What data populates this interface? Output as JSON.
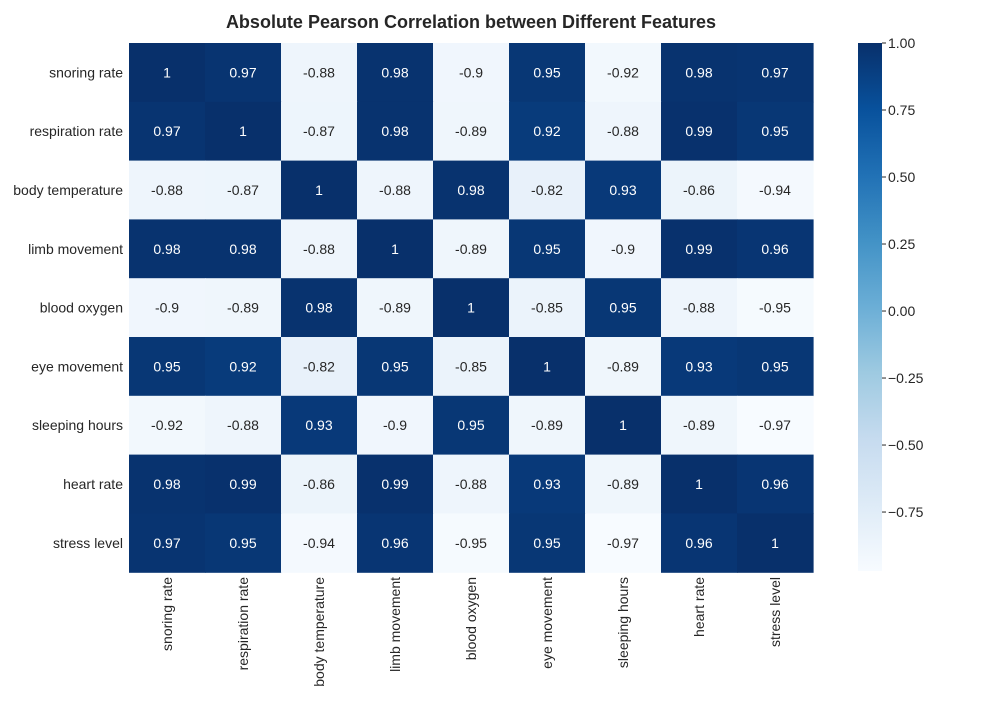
{
  "chart_data": {
    "type": "heatmap",
    "title": "Absolute Pearson Correlation between Different Features",
    "xlabel": "",
    "ylabel": "",
    "row_labels": [
      "snoring rate",
      "respiration rate",
      "body temperature",
      "limb movement",
      "blood oxygen",
      "eye movement",
      "sleeping hours",
      "heart rate",
      "stress level"
    ],
    "col_labels": [
      "snoring rate",
      "respiration rate",
      "body temperature",
      "limb movement",
      "blood oxygen",
      "eye movement",
      "sleeping hours",
      "heart rate",
      "stress level"
    ],
    "values": [
      [
        1,
        0.97,
        -0.88,
        0.98,
        -0.9,
        0.95,
        -0.92,
        0.98,
        0.97
      ],
      [
        0.97,
        1,
        -0.87,
        0.98,
        -0.89,
        0.92,
        -0.88,
        0.99,
        0.95
      ],
      [
        -0.88,
        -0.87,
        1,
        -0.88,
        0.98,
        -0.82,
        0.93,
        -0.86,
        -0.94
      ],
      [
        0.98,
        0.98,
        -0.88,
        1,
        -0.89,
        0.95,
        -0.9,
        0.99,
        0.96
      ],
      [
        -0.9,
        -0.89,
        0.98,
        -0.89,
        1,
        -0.85,
        0.95,
        -0.88,
        -0.95
      ],
      [
        0.95,
        0.92,
        -0.82,
        0.95,
        -0.85,
        1,
        -0.89,
        0.93,
        0.95
      ],
      [
        -0.92,
        -0.88,
        0.93,
        -0.9,
        0.95,
        -0.89,
        1,
        -0.89,
        -0.97
      ],
      [
        0.98,
        0.99,
        -0.86,
        0.99,
        -0.88,
        0.93,
        -0.89,
        1,
        0.96
      ],
      [
        0.97,
        0.95,
        -0.94,
        0.96,
        -0.95,
        0.95,
        -0.97,
        0.96,
        1
      ]
    ],
    "cell_labels": [
      [
        "1",
        "0.97",
        "-0.88",
        "0.98",
        "-0.9",
        "0.95",
        "-0.92",
        "0.98",
        "0.97"
      ],
      [
        "0.97",
        "1",
        "-0.87",
        "0.98",
        "-0.89",
        "0.92",
        "-0.88",
        "0.99",
        "0.95"
      ],
      [
        "-0.88",
        "-0.87",
        "1",
        "-0.88",
        "0.98",
        "-0.82",
        "0.93",
        "-0.86",
        "-0.94"
      ],
      [
        "0.98",
        "0.98",
        "-0.88",
        "1",
        "-0.89",
        "0.95",
        "-0.9",
        "0.99",
        "0.96"
      ],
      [
        "-0.9",
        "-0.89",
        "0.98",
        "-0.89",
        "1",
        "-0.85",
        "0.95",
        "-0.88",
        "-0.95"
      ],
      [
        "0.95",
        "0.92",
        "-0.82",
        "0.95",
        "-0.85",
        "1",
        "-0.89",
        "0.93",
        "0.95"
      ],
      [
        "-0.92",
        "-0.88",
        "0.93",
        "-0.9",
        "0.95",
        "-0.89",
        "1",
        "-0.89",
        "-0.97"
      ],
      [
        "0.98",
        "0.99",
        "-0.86",
        "0.99",
        "-0.88",
        "0.93",
        "-0.89",
        "1",
        "0.96"
      ],
      [
        "0.97",
        "0.95",
        "-0.94",
        "0.96",
        "-0.95",
        "0.95",
        "-0.97",
        "0.96",
        "1"
      ]
    ],
    "colormap": "Blues",
    "vmin": -0.97,
    "vmax": 1.0,
    "colorbar": {
      "ticks": [
        1.0,
        0.75,
        0.5,
        0.25,
        0.0,
        -0.25,
        -0.5,
        -0.75
      ],
      "tick_labels": [
        "1.00",
        "0.75",
        "0.50",
        "0.25",
        "0.00",
        "−0.25",
        "−0.50",
        "−0.75"
      ]
    },
    "colors": {
      "light": "#f7fbff",
      "mid": "#6baed6",
      "dark": "#08306b",
      "text_on_dark": "#ffffff",
      "text_on_light": "#262626"
    },
    "grid": false
  }
}
